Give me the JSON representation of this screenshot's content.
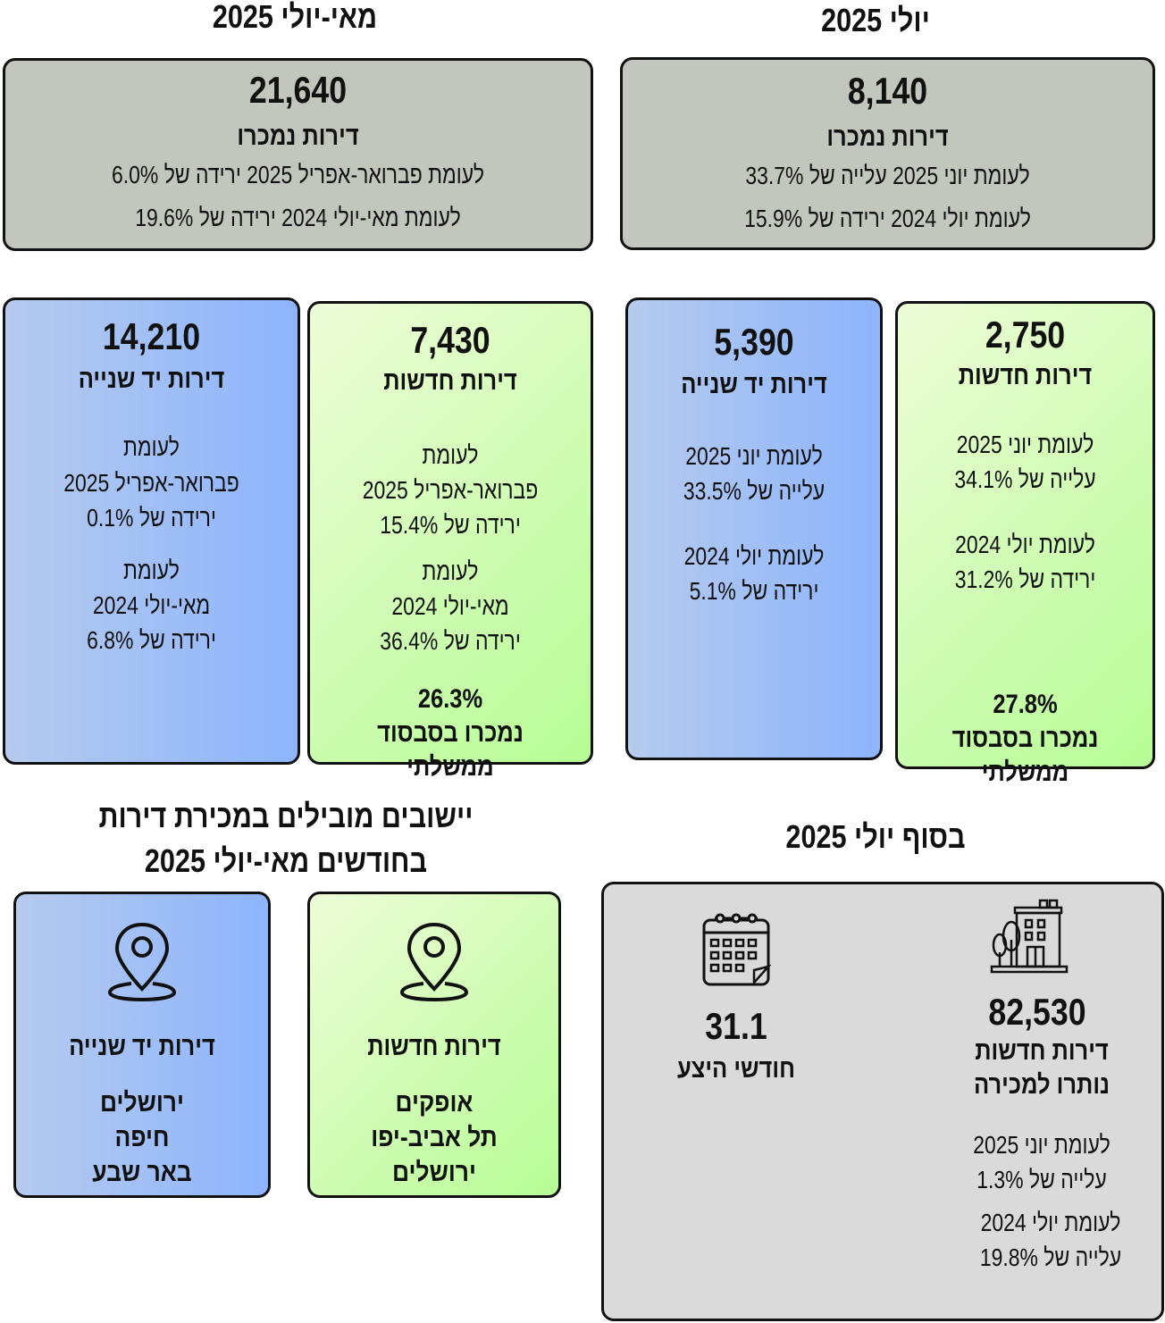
{
  "may_july": {
    "title": "מאי-יולי 2025",
    "total": {
      "value": "21,640",
      "label": "דירות נמכרו",
      "cmp1": "לעומת פברואר-אפריל 2025  ירידה של 6.0%",
      "cmp2": "לעומת מאי-יולי 2024 ירידה של 19.6%"
    },
    "second_hand": {
      "value": "14,210",
      "label": "דירות יד שנייה",
      "lines1": [
        "לעומת",
        "פברואר-אפריל  2025",
        "ירידה של 0.1%"
      ],
      "lines2": [
        "לעומת",
        "מאי-יולי 2024",
        "ירידה של 6.8%"
      ]
    },
    "new": {
      "value": "7,430",
      "label": "דירות חדשות",
      "lines1": [
        "לעומת",
        "פברואר-אפריל 2025",
        "ירידה של 15.4%"
      ],
      "lines2": [
        "לעומת",
        "מאי-יולי  2024",
        "ירידה של 36.4%"
      ],
      "subsidy_pct": "26.3%",
      "subsidy_label": "נמכרו בסבסוד ממשלתי"
    }
  },
  "july": {
    "title": "יולי 2025",
    "total": {
      "value": "8,140",
      "label": "דירות נמכרו",
      "cmp1": "לעומת יוני 2025 עלייה של 33.7%",
      "cmp2": "לעומת יולי 2024 ירידה של 15.9%"
    },
    "second_hand": {
      "value": "5,390",
      "label": "דירות יד שנייה",
      "lines1": [
        "לעומת יוני 2025",
        "עלייה של 33.5%"
      ],
      "lines2": [
        "לעומת יולי 2024",
        "ירידה של 5.1%"
      ]
    },
    "new": {
      "value": "2,750",
      "label": "דירות חדשות",
      "lines1": [
        "לעומת יוני 2025",
        "עלייה של 34.1%"
      ],
      "lines2": [
        "לעומת יולי 2024",
        "ירידה של 31.2%"
      ],
      "subsidy_pct": "27.8%",
      "subsidy_label": "נמכרו בסבסוד ממשלתי"
    }
  },
  "leading": {
    "title_line1": "יישובים מובילים במכירת דירות",
    "title_line2": "בחודשים מאי-יולי 2025",
    "second_hand": {
      "label": "דירות יד שנייה",
      "cities": [
        "ירושלים",
        "חיפה",
        "באר שבע"
      ],
      "icon": "map-pin-icon"
    },
    "new": {
      "label": "דירות חדשות",
      "cities": [
        "אופקים",
        "תל אביב-יפו",
        "ירושלים"
      ],
      "icon": "map-pin-icon"
    }
  },
  "end_july": {
    "title": "בסוף יולי 2025",
    "months": {
      "value": "31.1",
      "label": "חודשי היצע",
      "icon": "calendar-icon"
    },
    "inventory": {
      "value": "82,530",
      "label1": "דירות חדשות",
      "label2": "נותרו למכירה",
      "icon": "building-icon",
      "lines1": [
        "לעומת יוני 2025",
        "עלייה של 1.3%"
      ],
      "lines2": [
        "לעומת יולי 2024",
        "עלייה של 19.8%"
      ]
    }
  },
  "colors": {
    "gray": "#c3c6bd",
    "light_gray": "#dadada",
    "blue": "#8db4fc",
    "green": "#b6fc95"
  }
}
